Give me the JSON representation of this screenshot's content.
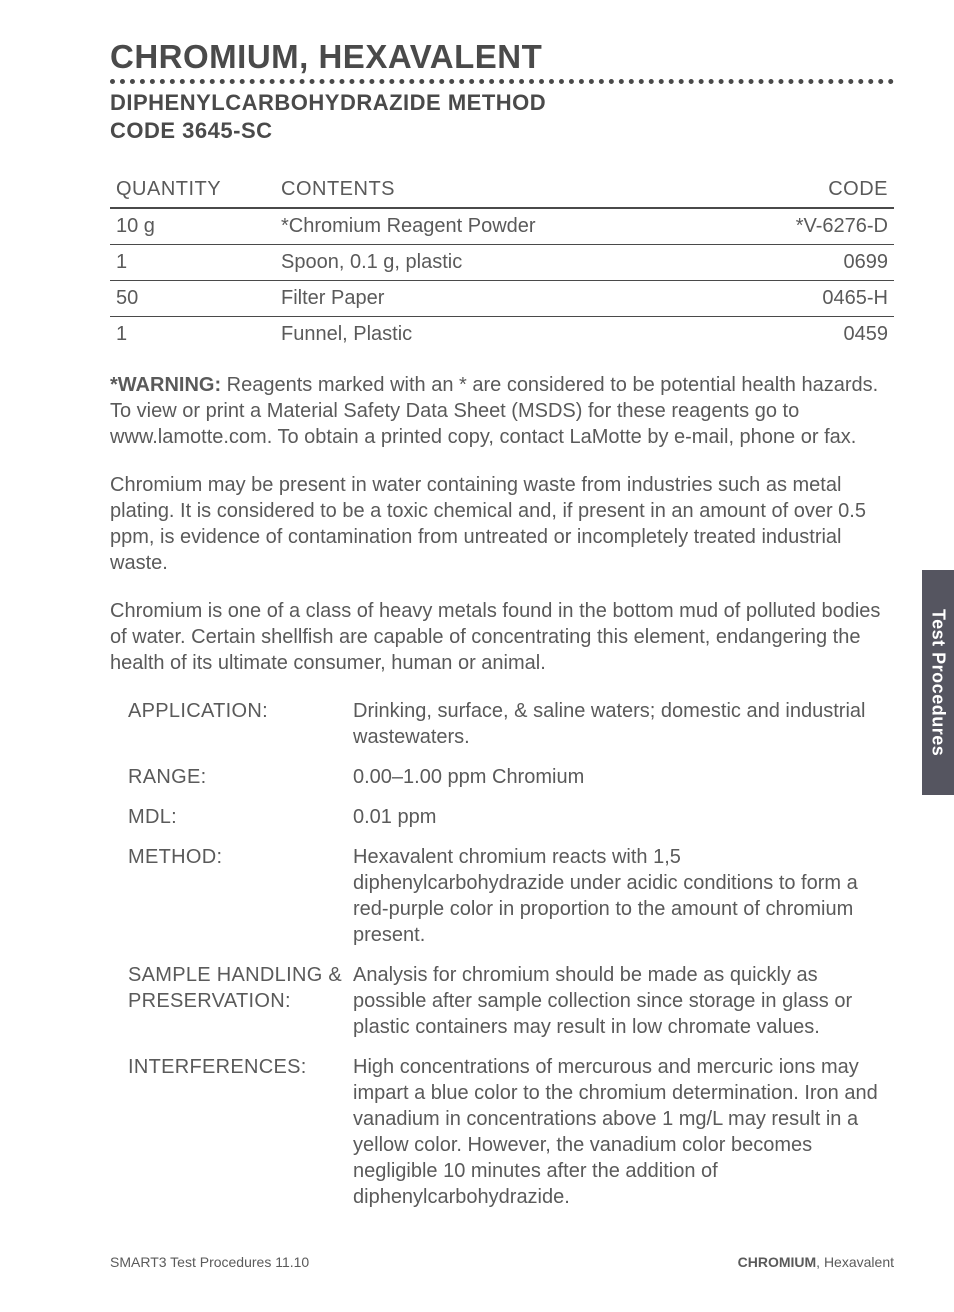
{
  "title": {
    "main": "CHROMIUM, HEXAVALENT",
    "sub1": "DIPHENYLCARBOHYDRAZIDE METHOD",
    "sub2": "CODE 3645-SC"
  },
  "table": {
    "headers": {
      "qty": "QUANTITY",
      "contents": "CONTENTS",
      "code": "CODE"
    },
    "rows": [
      {
        "qty": "10 g",
        "contents": "*Chromium Reagent Powder",
        "code": "*V-6276-D"
      },
      {
        "qty": "1",
        "contents": "Spoon, 0.1 g, plastic",
        "code": "0699"
      },
      {
        "qty": "50",
        "contents": "Filter Paper",
        "code": "0465-H"
      },
      {
        "qty": "1",
        "contents": "Funnel, Plastic",
        "code": "0459"
      }
    ]
  },
  "warning": {
    "label": "*WARNING:",
    "text": " Reagents marked with an * are considered to be potential health hazards. To view or print a Material Safety Data Sheet (MSDS) for these reagents go to www.lamotte.com. To obtain a printed copy, contact LaMotte by e-mail, phone or fax."
  },
  "para1": "Chromium may be present in water containing waste from industries such as metal plating. It is considered to be a toxic chemical and, if present in an amount of over 0.5 ppm, is evidence of contamination from untreated or incompletely treated industrial waste.",
  "para2": "Chromium is one of a class of heavy metals found in the bottom mud of polluted bodies of water. Certain shellfish are capable of concentrating this element, endangering the health of its ultimate consumer, human or animal.",
  "specs": [
    {
      "label": "APPLICATION:",
      "value": "Drinking, surface, & saline waters; domestic and industrial wastewaters."
    },
    {
      "label": "RANGE:",
      "value": "0.00–1.00 ppm Chromium"
    },
    {
      "label": "MDL:",
      "value": "0.01 ppm"
    },
    {
      "label": "METHOD:",
      "value": "Hexavalent chromium reacts with 1,5 diphenylcarbohydrazide under acidic conditions to form a red-purple color in proportion to the amount of chromium present."
    },
    {
      "label": "SAMPLE HANDLING & PRESERVATION:",
      "value": "Analysis for chromium should be made as quickly as possible after sample collection since storage in glass or plastic containers may result in low chromate values."
    },
    {
      "label": "INTERFERENCES:",
      "value": "High concentrations of mercurous and mercuric ions may impart a blue color to the chromium determination. Iron and vanadium in concentrations above 1 mg/L may result in a yellow color. However, the vanadium color becomes negligible 10 minutes after the addition of diphenylcarbohydrazide."
    }
  ],
  "sideTab": "Test Procedures",
  "footer": {
    "left": "SMART3 Test Procedures 11.10",
    "rightBold": "CHROMIUM",
    "rightRest": ", Hexavalent"
  }
}
